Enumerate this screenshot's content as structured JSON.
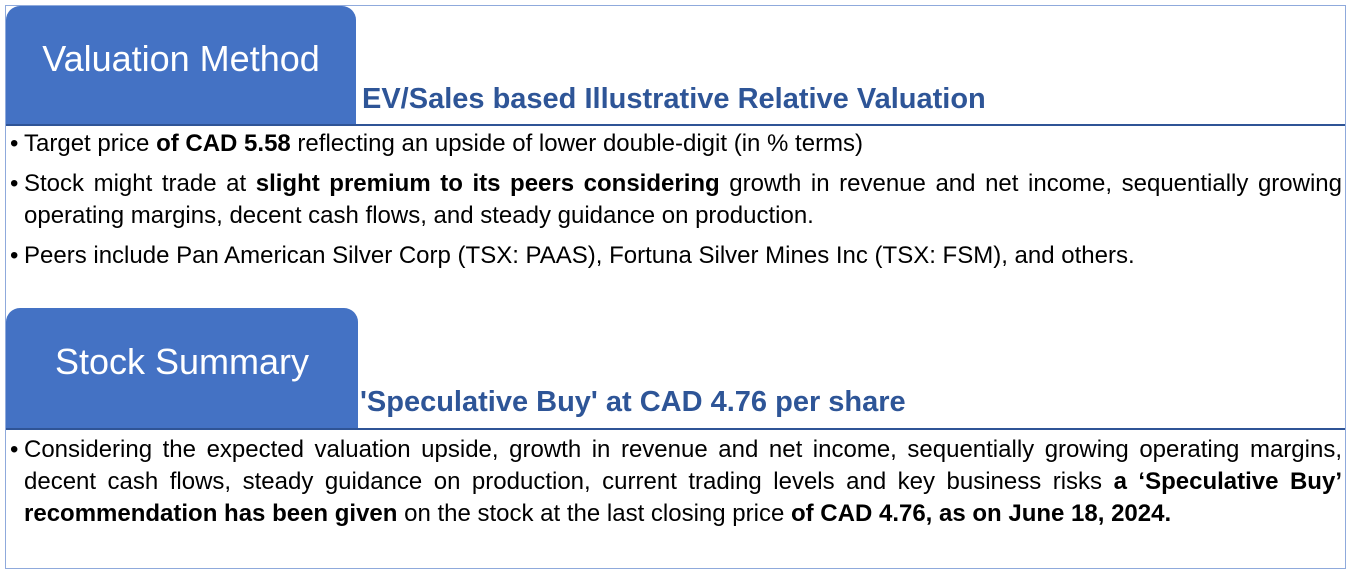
{
  "valuation": {
    "tab_label": "Valuation Method",
    "subtitle": "EV/Sales based Illustrative Relative Valuation",
    "bullet_glyph": "•",
    "bullets": [
      {
        "a": "Target price ",
        "b": "of CAD 5.58",
        "c": " reflecting an upside of lower double-digit (in % terms)"
      },
      {
        "a": "Stock might trade at ",
        "b": "slight premium to its peers considering",
        "c": " growth in revenue and net income, sequentially growing operating margins, decent cash flows, and steady guidance on production."
      },
      {
        "a": "Peers include Pan American Silver Corp (TSX: PAAS), Fortuna Silver Mines Inc (TSX: FSM), and others."
      }
    ]
  },
  "summary": {
    "tab_label": "Stock Summary",
    "subtitle": "'Speculative Buy' at CAD 4.76 per share",
    "bullet_glyph": "•",
    "bullet": {
      "a": "Considering the expected valuation upside, growth in revenue and net income, sequentially growing operating margins, decent cash flows, steady guidance on production, current trading levels and key business risks ",
      "b": "a ‘Speculative Buy’ recommendation has been given",
      "c": " on the stock at the last closing price ",
      "d": "of CAD 4.76, as on June 18, 2024."
    }
  },
  "colors": {
    "tab_background": "#4472c4",
    "subtitle_text": "#2e5597",
    "rule": "#2f5496",
    "frame_border": "#8faadc"
  }
}
